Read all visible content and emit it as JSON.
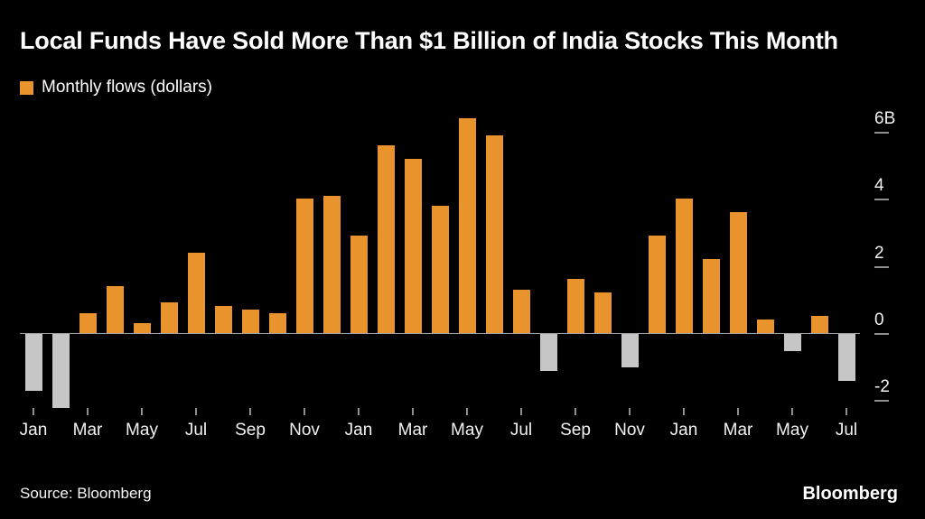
{
  "header": {
    "title": "Local Funds Have Sold More Than $1 Billion of India Stocks This Month"
  },
  "legend": {
    "label": "Monthly flows (dollars)",
    "swatch_color": "#E8932C"
  },
  "footer": {
    "source": "Source: Bloomberg",
    "logo": "Bloomberg"
  },
  "chart_data": {
    "type": "bar",
    "title": "Local Funds Have Sold More Than $1 Billion of India Stocks This Month",
    "series_name": "Monthly flows (dollars)",
    "unit": "billions of dollars",
    "months": [
      "Jan",
      "Feb",
      "Mar",
      "Apr",
      "May",
      "Jun",
      "Jul",
      "Aug",
      "Sep",
      "Oct",
      "Nov",
      "Dec",
      "Jan",
      "Feb",
      "Mar",
      "Apr",
      "May",
      "Jun",
      "Jul",
      "Aug",
      "Sep",
      "Oct",
      "Nov",
      "Dec",
      "Jan",
      "Feb",
      "Mar",
      "Apr",
      "May",
      "Jun",
      "Jul"
    ],
    "values": [
      -1.7,
      -2.2,
      0.6,
      1.4,
      0.3,
      0.9,
      2.4,
      0.8,
      0.7,
      0.6,
      4.0,
      4.1,
      2.9,
      5.6,
      5.2,
      3.8,
      6.4,
      5.9,
      1.3,
      -1.1,
      1.6,
      1.2,
      -1.0,
      2.9,
      4.0,
      2.2,
      3.6,
      0.4,
      -0.5,
      0.5,
      -1.4
    ],
    "x_tick_labels": [
      "Jan",
      "Mar",
      "May",
      "Jul",
      "Sep",
      "Nov",
      "Jan",
      "Mar",
      "May",
      "Jul",
      "Sep",
      "Nov",
      "Jan",
      "Mar",
      "May",
      "Jul"
    ],
    "x_tick_every": 2,
    "y_ticks": [
      {
        "label": "6B",
        "value": 6
      },
      {
        "label": "4",
        "value": 4
      },
      {
        "label": "2",
        "value": 2
      },
      {
        "label": "0",
        "value": 0
      },
      {
        "label": "-2",
        "value": -2
      }
    ],
    "ylim": [
      -2.45,
      6.75
    ],
    "colors": {
      "positive": "#E8932C",
      "negative": "#C6C6C6",
      "axis_text": "#F2F2F2",
      "zero_line": "#A0A0A0"
    },
    "grid": false,
    "legend_position": "top-left"
  }
}
